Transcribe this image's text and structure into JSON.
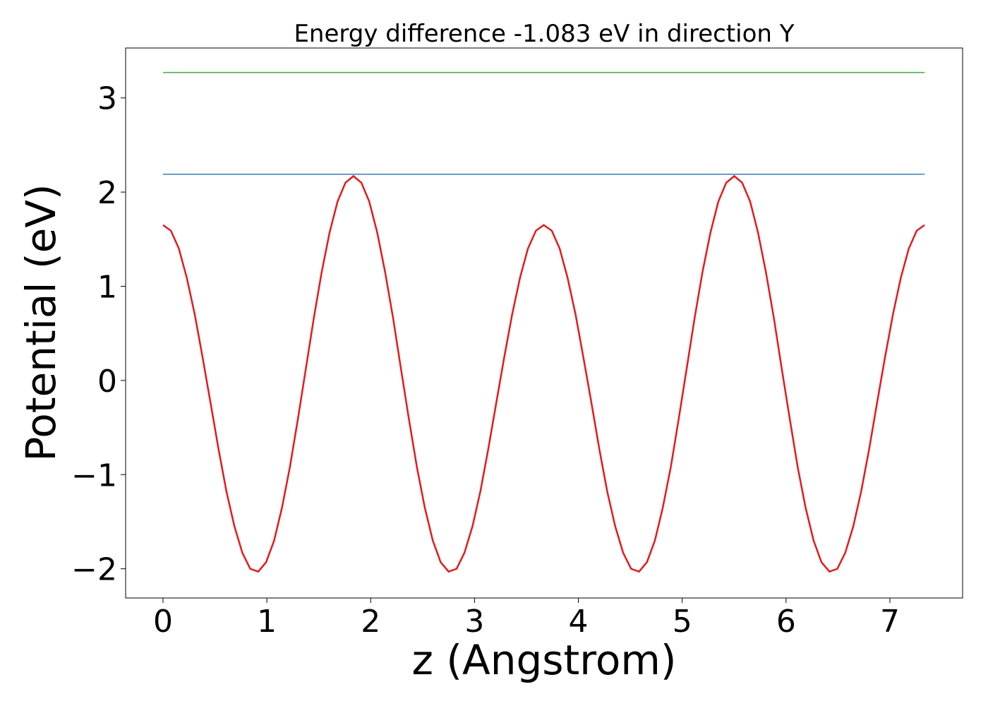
{
  "chart_data": {
    "type": "line",
    "title": "Energy difference -1.083 eV in direction Y",
    "xlabel": "z (Angstrom)",
    "ylabel": "Potential (eV)",
    "xlim": [
      -0.36,
      7.7
    ],
    "ylim": [
      -2.31,
      3.53
    ],
    "xticks": [
      0,
      1,
      2,
      3,
      4,
      5,
      6,
      7
    ],
    "yticks": [
      {
        "value": -2,
        "label": "−2"
      },
      {
        "value": -1,
        "label": "−1"
      },
      0,
      1,
      2,
      3
    ],
    "grid": false,
    "series": [
      {
        "color": "#e41a1c",
        "x": [
          0,
          0.076,
          0.153,
          0.229,
          0.306,
          0.382,
          0.458,
          0.535,
          0.611,
          0.688,
          0.764,
          0.84,
          0.917,
          0.993,
          1.07,
          1.146,
          1.222,
          1.299,
          1.375,
          1.452,
          1.528,
          1.604,
          1.681,
          1.757,
          1.834,
          1.91,
          1.986,
          2.063,
          2.139,
          2.216,
          2.292,
          2.368,
          2.445,
          2.521,
          2.598,
          2.674,
          2.75,
          2.827,
          2.903,
          2.98,
          3.056,
          3.132,
          3.209,
          3.285,
          3.362,
          3.438,
          3.514,
          3.591,
          3.667,
          3.744,
          3.82,
          3.896,
          3.973,
          4.049,
          4.126,
          4.202,
          4.278,
          4.355,
          4.431,
          4.508,
          4.584,
          4.66,
          4.737,
          4.813,
          4.89,
          4.966,
          5.042,
          5.119,
          5.195,
          5.272,
          5.348,
          5.424,
          5.501,
          5.577,
          5.654,
          5.73,
          5.806,
          5.883,
          5.959,
          6.036,
          6.112,
          6.188,
          6.265,
          6.341,
          6.418,
          6.494,
          6.57,
          6.647,
          6.723,
          6.8,
          6.876,
          6.952,
          7.029,
          7.105,
          7.182,
          7.258,
          7.334
        ],
        "values": [
          1.65,
          1.59,
          1.4,
          1.09,
          0.7,
          0.24,
          -0.24,
          -0.73,
          -1.18,
          -1.55,
          -1.83,
          -2.0,
          -2.03,
          -1.93,
          -1.7,
          -1.35,
          -0.92,
          -0.41,
          0.12,
          0.66,
          1.15,
          1.57,
          1.9,
          2.1,
          2.17,
          2.1,
          1.9,
          1.57,
          1.15,
          0.66,
          0.12,
          -0.41,
          -0.92,
          -1.35,
          -1.7,
          -1.93,
          -2.03,
          -2.0,
          -1.83,
          -1.55,
          -1.18,
          -0.73,
          -0.24,
          0.24,
          0.7,
          1.09,
          1.4,
          1.59,
          1.65,
          1.59,
          1.4,
          1.09,
          0.7,
          0.24,
          -0.24,
          -0.73,
          -1.18,
          -1.55,
          -1.83,
          -2.0,
          -2.03,
          -1.93,
          -1.7,
          -1.35,
          -0.92,
          -0.41,
          0.12,
          0.66,
          1.15,
          1.57,
          1.9,
          2.1,
          2.17,
          2.1,
          1.9,
          1.57,
          1.15,
          0.66,
          0.12,
          -0.41,
          -0.92,
          -1.35,
          -1.7,
          -1.93,
          -2.03,
          -2.0,
          -1.83,
          -1.55,
          -1.18,
          -0.73,
          -0.24,
          0.24,
          0.7,
          1.09,
          1.4,
          1.59,
          1.65
        ]
      },
      {
        "color": "#377eb8",
        "x": [
          0,
          7.334
        ],
        "values": [
          2.19,
          2.19
        ]
      },
      {
        "color": "#4daf4a",
        "x": [
          0,
          7.334
        ],
        "values": [
          3.27,
          3.27
        ]
      }
    ]
  }
}
